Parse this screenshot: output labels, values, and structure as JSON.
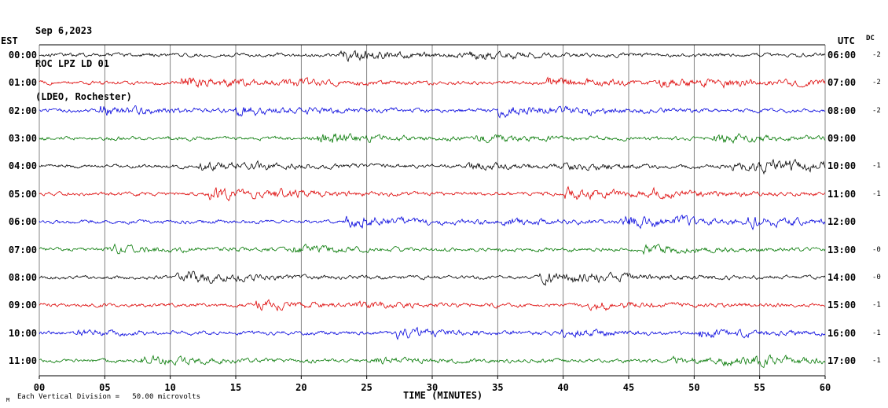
{
  "header": {
    "date": "Sep 6,2023",
    "station": "ROC LPZ LD 01",
    "location": "(LDEO, Rochester)"
  },
  "axes": {
    "left_label": "EST",
    "right_label": "UTC",
    "dc_label": "DC",
    "x_title": "TIME (MINUTES)"
  },
  "footer": {
    "marker": "M",
    "scale_note": "Each Vertical Division =   50.00 microvolts"
  },
  "chart_data": {
    "type": "line",
    "chart_kind": "seismogram_helicorder",
    "title": "ROC LPZ LD 01 (LDEO, Rochester) Sep 6,2023",
    "xlabel": "TIME (MINUTES)",
    "x_range": [
      0,
      60
    ],
    "x_tick_interval": 5,
    "x_tick_labels": [
      "00",
      "05",
      "10",
      "15",
      "20",
      "25",
      "30",
      "35",
      "40",
      "45",
      "50",
      "55",
      "60"
    ],
    "minutes_per_row": 60,
    "num_rows": 12,
    "vertical_division_microvolts": 50.0,
    "grid": "vertical lines every 5 minutes",
    "legend_position": "none",
    "rows": [
      {
        "est": "00:00",
        "utc": "06:00",
        "color": "#000000",
        "dc": "-2"
      },
      {
        "est": "01:00",
        "utc": "07:00",
        "color": "#dd0000",
        "dc": "-2"
      },
      {
        "est": "02:00",
        "utc": "08:00",
        "color": "#0000dd",
        "dc": "-2"
      },
      {
        "est": "03:00",
        "utc": "09:00",
        "color": "#007700",
        "dc": ""
      },
      {
        "est": "04:00",
        "utc": "10:00",
        "color": "#000000",
        "dc": "-1"
      },
      {
        "est": "05:00",
        "utc": "11:00",
        "color": "#dd0000",
        "dc": "-1"
      },
      {
        "est": "06:00",
        "utc": "12:00",
        "color": "#0000dd",
        "dc": ""
      },
      {
        "est": "07:00",
        "utc": "13:00",
        "color": "#007700",
        "dc": "-0"
      },
      {
        "est": "08:00",
        "utc": "14:00",
        "color": "#000000",
        "dc": "-0"
      },
      {
        "est": "09:00",
        "utc": "15:00",
        "color": "#dd0000",
        "dc": "-1"
      },
      {
        "est": "10:00",
        "utc": "16:00",
        "color": "#0000dd",
        "dc": "-1"
      },
      {
        "est": "11:00",
        "utc": "17:00",
        "color": "#007700",
        "dc": "-1"
      }
    ],
    "series_note": "Continuous background seismic noise traces; individual sample amplitudes are not labeled in the image."
  }
}
